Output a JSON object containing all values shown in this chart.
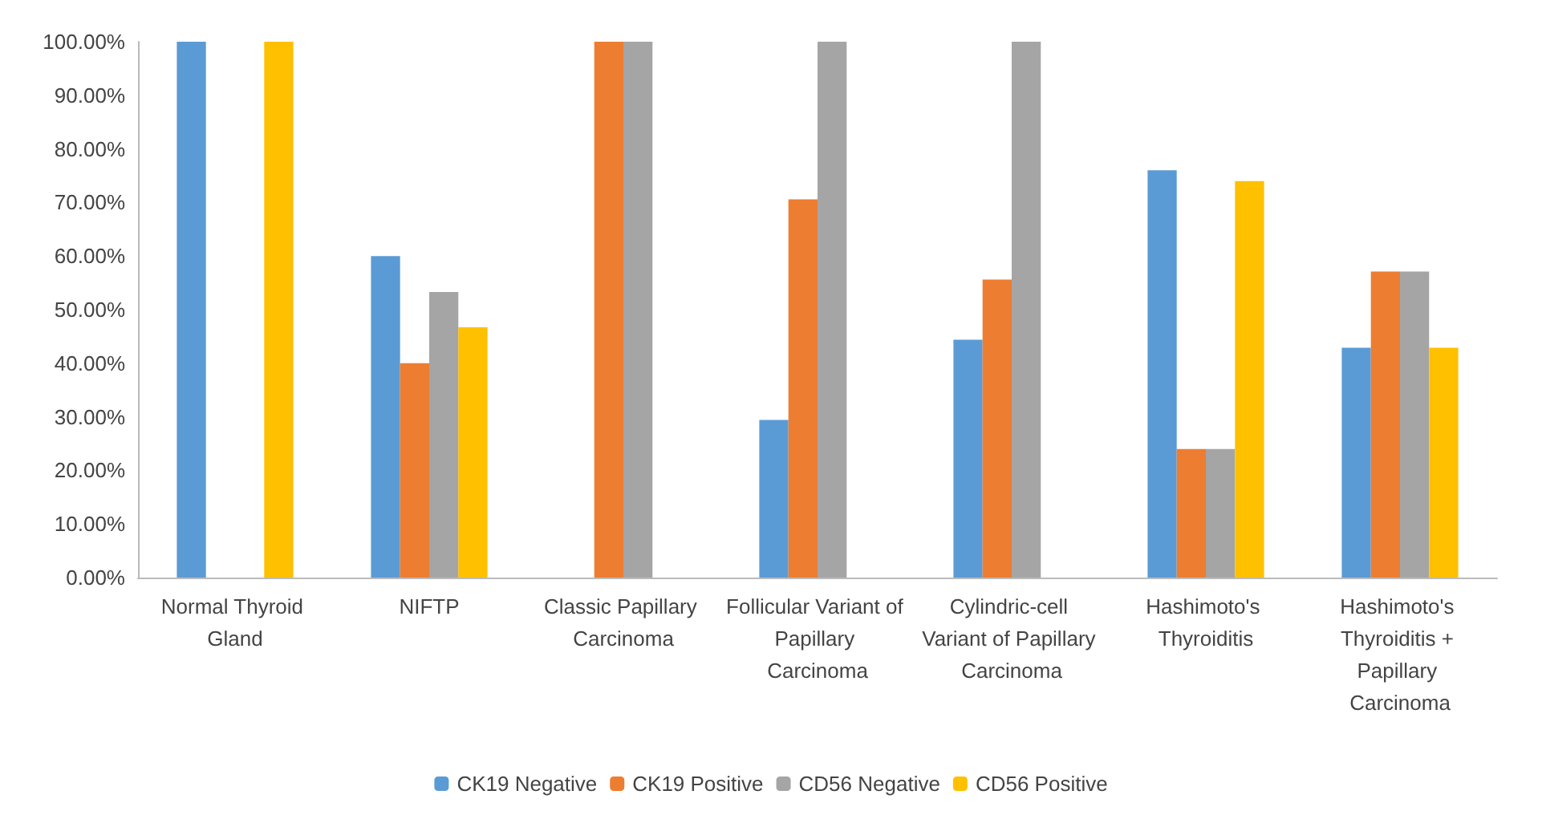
{
  "chart_data": {
    "type": "bar",
    "categories": [
      "Normal Thyroid Gland",
      "NIFTP",
      "Classic Papillary Carcinoma",
      "Follicular Variant of Papillary Carcinoma",
      "Cylindric-cell Variant of Papillary Carcinoma",
      "Hashimoto's Thyroiditis",
      "Hashimoto's Thyroiditis + Papillary Carcinoma"
    ],
    "series": [
      {
        "name": "CK19 Negative",
        "color": "#5b9bd5",
        "values": [
          100,
          60,
          0,
          29.4,
          44.4,
          76,
          42.9
        ]
      },
      {
        "name": "CK19 Positive",
        "color": "#ed7d31",
        "values": [
          0,
          40,
          100,
          70.6,
          55.6,
          24,
          57.1
        ]
      },
      {
        "name": "CD56 Negative",
        "color": "#a5a5a5",
        "values": [
          0,
          53.3,
          100,
          100,
          100,
          24,
          57.1
        ]
      },
      {
        "name": "CD56 Positive",
        "color": "#ffc000",
        "values": [
          100,
          46.7,
          0,
          0,
          0,
          74,
          42.9
        ]
      }
    ],
    "ylim": [
      0,
      100
    ],
    "yticks": [
      {
        "value": 0,
        "label": "0.00%"
      },
      {
        "value": 10,
        "label": "10.00%"
      },
      {
        "value": 20,
        "label": "20.00%"
      },
      {
        "value": 30,
        "label": "30.00%"
      },
      {
        "value": 40,
        "label": "40.00%"
      },
      {
        "value": 50,
        "label": "50.00%"
      },
      {
        "value": 60,
        "label": "60.00%"
      },
      {
        "value": 70,
        "label": "70.00%"
      },
      {
        "value": 80,
        "label": "80.00%"
      },
      {
        "value": 90,
        "label": "90.00%"
      },
      {
        "value": 100,
        "label": "100.00%"
      }
    ],
    "grid": false,
    "legend": "bottom"
  }
}
